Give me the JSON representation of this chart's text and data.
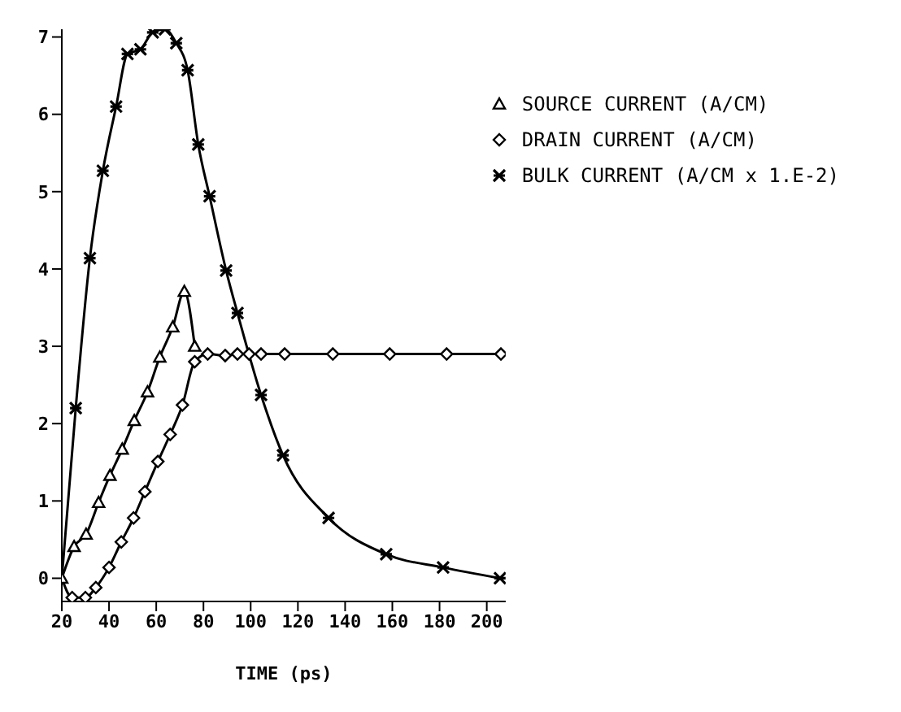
{
  "chart_data": {
    "type": "line",
    "xlabel": "TIME (ps)",
    "xlim": [
      20,
      208
    ],
    "xticks": [
      20,
      40,
      60,
      80,
      100,
      120,
      140,
      160,
      180,
      200
    ],
    "ylim": [
      -0.3,
      7.1
    ],
    "yticks": [
      0,
      1,
      2,
      3,
      4,
      5,
      6,
      7
    ],
    "grid": false,
    "legend": "top right",
    "line_style": "solid",
    "series": [
      {
        "name": "SOURCE CURRENT (A/CM)",
        "color": "#000000",
        "marker": "triangle",
        "x": [
          20,
          25.2,
          30.3,
          35.6,
          40.4,
          45.6,
          50.7,
          56.3,
          61.5,
          67,
          71.9,
          76.3
        ],
        "values": [
          0,
          0.41,
          0.57,
          0.98,
          1.33,
          1.67,
          2.04,
          2.41,
          2.86,
          3.25,
          3.71,
          3.0
        ]
      },
      {
        "name": "DRAIN CURRENT (A/CM)",
        "color": "#000000",
        "marker": "diamond",
        "x": [
          20,
          24.4,
          30,
          34.4,
          40,
          45.2,
          50.4,
          55.2,
          60.7,
          65.9,
          71.1,
          76.3,
          81.8,
          89.2,
          94.4,
          99.3,
          104.4,
          114.4,
          134.8,
          158.9,
          183,
          206
        ],
        "values": [
          0,
          -0.25,
          -0.25,
          -0.12,
          0.14,
          0.47,
          0.78,
          1.12,
          1.51,
          1.86,
          2.24,
          2.8,
          2.9,
          2.88,
          2.9,
          2.9,
          2.9,
          2.9,
          2.9,
          2.9,
          2.9,
          2.9
        ]
      },
      {
        "name": "BULK CURRENT (A/CM x 1.E-2)",
        "color": "#000000",
        "marker": "cross",
        "x": [
          20,
          25.9,
          31.9,
          37.4,
          43,
          47.8,
          53.3,
          58.5,
          63.7,
          68.5,
          73.3,
          77.8,
          82.6,
          89.6,
          94.4,
          104.4,
          113.7,
          133,
          157.4,
          181.5,
          205.6
        ],
        "values": [
          0,
          2.2,
          4.14,
          5.27,
          6.1,
          6.78,
          6.84,
          7.06,
          7.1,
          6.92,
          6.57,
          5.61,
          4.94,
          3.98,
          3.43,
          2.37,
          1.59,
          0.78,
          0.31,
          0.14,
          0.0
        ]
      }
    ]
  }
}
